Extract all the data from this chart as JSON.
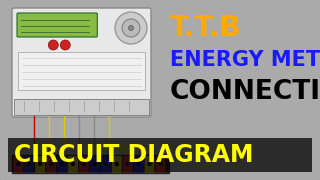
{
  "bg_outer": "#3a3a3a",
  "bg_inner": "#aaaaaa",
  "title_ttb": "T.T.B",
  "title_ttb_color": "#ffaa00",
  "title_ttb_fontsize": 20,
  "line2": "ENERGY METER",
  "line2_color": "#1a1aff",
  "line2_fontsize": 15,
  "line3": "CONNECTION",
  "line3_color": "#000000",
  "line3_fontsize": 19,
  "line4": "CIRCUIT DIAGRAM",
  "line4_color": "#ffff00",
  "line4_fontsize": 17,
  "line4_bg": "#000000"
}
